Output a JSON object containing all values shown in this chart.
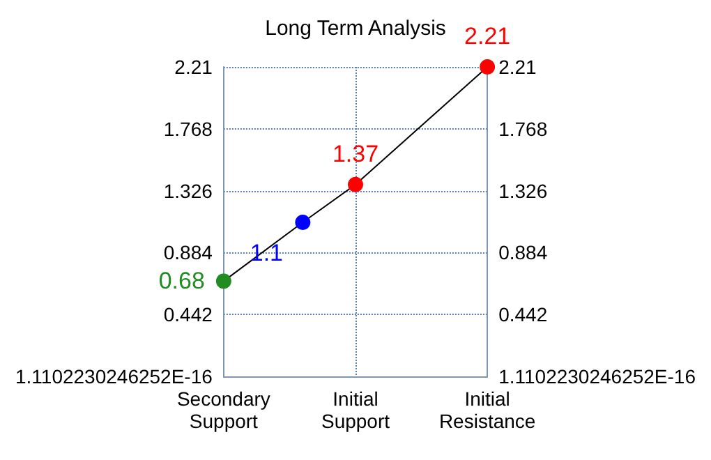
{
  "chart_data": {
    "type": "line",
    "title": "Long Term Analysis",
    "categories": [
      "Secondary\nSupport",
      null,
      null,
      null,
      null,
      "Initial\nSupport",
      null,
      null,
      null,
      null,
      "Initial\nResistance"
    ],
    "series": [
      {
        "color": "#000000",
        "colors": [
          "#228b22",
          null,
          null,
          "#0000ff",
          null,
          "#ff0000",
          null,
          null,
          null,
          null,
          "#ff0000"
        ],
        "values": [
          0.68,
          null,
          null,
          1.1,
          null,
          1.37,
          null,
          null,
          null,
          null,
          2.21
        ]
      }
    ],
    "ylim": [
      0,
      2.21
    ],
    "yticks": [
      {
        "value": 0,
        "label": "1.1102230246252E-16"
      },
      0.442,
      0.884,
      1.326,
      1.768,
      2.21
    ],
    "y2lim": [
      0,
      2.21
    ],
    "y2ticks": [
      {
        "value": 0,
        "label": "1.1102230246252E-16"
      },
      0.442,
      0.884,
      1.326,
      1.768,
      2.21
    ],
    "grid": true,
    "marker": "circle",
    "line_style": "solid",
    "data_labels": true
  }
}
